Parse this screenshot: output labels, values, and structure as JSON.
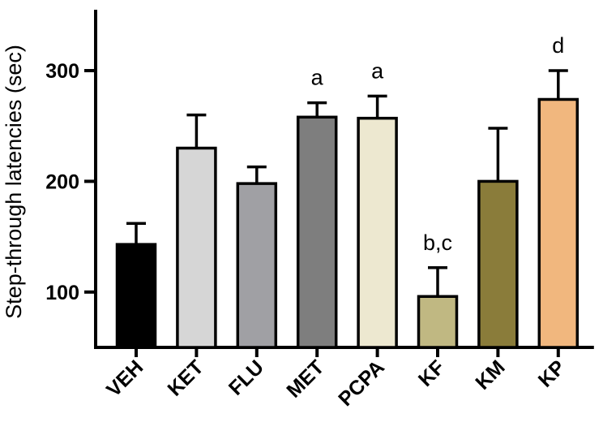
{
  "chart_data": {
    "type": "bar",
    "title": "",
    "xlabel": "",
    "ylabel": "Step-through latencies (sec)",
    "categories": [
      "VEH",
      "KET",
      "FLU",
      "MET",
      "PCPA",
      "KF",
      "KM",
      "KP"
    ],
    "values": [
      143,
      230,
      198,
      258,
      257,
      96,
      200,
      274
    ],
    "errors": [
      19,
      30,
      15,
      13,
      20,
      26,
      48,
      26
    ],
    "annotations": [
      "",
      "",
      "",
      "a",
      "a",
      "b,c",
      "",
      "d"
    ],
    "colors": [
      "#000000",
      "#d6d6d6",
      "#a0a0a4",
      "#7e7e7e",
      "#ede8d0",
      "#c0b882",
      "#8a7c3a",
      "#f1b77e"
    ],
    "ylim": [
      50,
      355
    ],
    "yticks": [
      100,
      200,
      300
    ],
    "grid": false,
    "legend": "none"
  }
}
